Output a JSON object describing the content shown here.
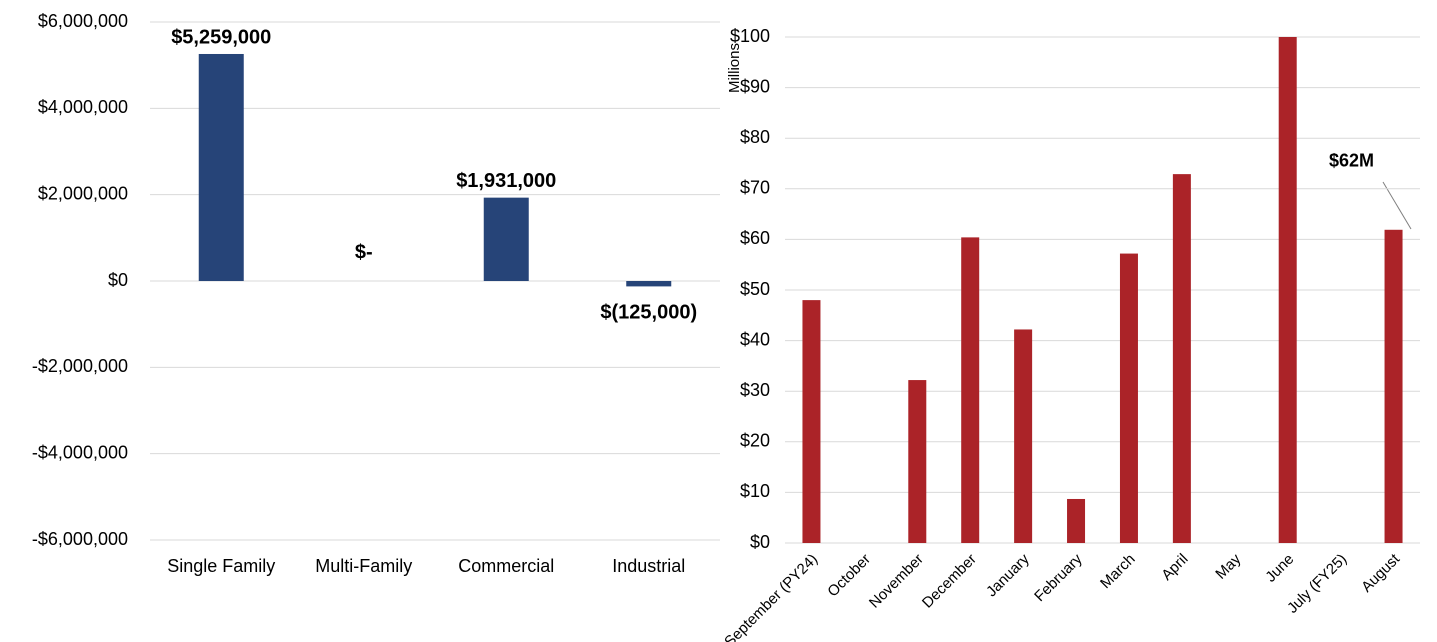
{
  "chart_data": [
    {
      "type": "bar",
      "categories": [
        "Single Family",
        "Multi-Family",
        "Commercial",
        "Industrial"
      ],
      "values": [
        5259000,
        0,
        1931000,
        -125000
      ],
      "value_labels": [
        "$5,259,000",
        "$-",
        "$1,931,000",
        "$(125,000)"
      ],
      "color": "#264478",
      "ylim": [
        -6000000,
        6000000
      ],
      "yticks": [
        {
          "value": -6000000,
          "label": "-$6,000,000"
        },
        {
          "value": -4000000,
          "label": "-$4,000,000"
        },
        {
          "value": -2000000,
          "label": "-$2,000,000"
        },
        {
          "value": 0,
          "label": "$0"
        },
        {
          "value": 2000000,
          "label": "$2,000,000"
        },
        {
          "value": 4000000,
          "label": "$4,000,000"
        },
        {
          "value": 6000000,
          "label": "$6,000,000"
        }
      ],
      "grid": true
    },
    {
      "type": "bar",
      "y_label": "Millions",
      "categories": [
        "September (PY24)",
        "October",
        "November",
        "December",
        "January",
        "February",
        "March",
        "April",
        "May",
        "June",
        "July (FY25)",
        "August"
      ],
      "values": [
        48,
        0,
        32.2,
        60.4,
        42.2,
        8.7,
        57.2,
        72.9,
        0,
        100,
        0,
        61.9
      ],
      "value_labels": [
        null,
        null,
        null,
        null,
        null,
        null,
        null,
        null,
        null,
        null,
        null,
        "$62M"
      ],
      "color": "#ab2328",
      "ylim": [
        0,
        100
      ],
      "yticks": [
        {
          "value": 0,
          "label": "$0"
        },
        {
          "value": 10,
          "label": "$10"
        },
        {
          "value": 20,
          "label": "$20"
        },
        {
          "value": 30,
          "label": "$30"
        },
        {
          "value": 40,
          "label": "$40"
        },
        {
          "value": 50,
          "label": "$50"
        },
        {
          "value": 60,
          "label": "$60"
        },
        {
          "value": 70,
          "label": "$70"
        },
        {
          "value": 80,
          "label": "$80"
        },
        {
          "value": 90,
          "label": "$90"
        },
        {
          "value": 100,
          "label": "$100"
        }
      ],
      "grid": true
    }
  ]
}
